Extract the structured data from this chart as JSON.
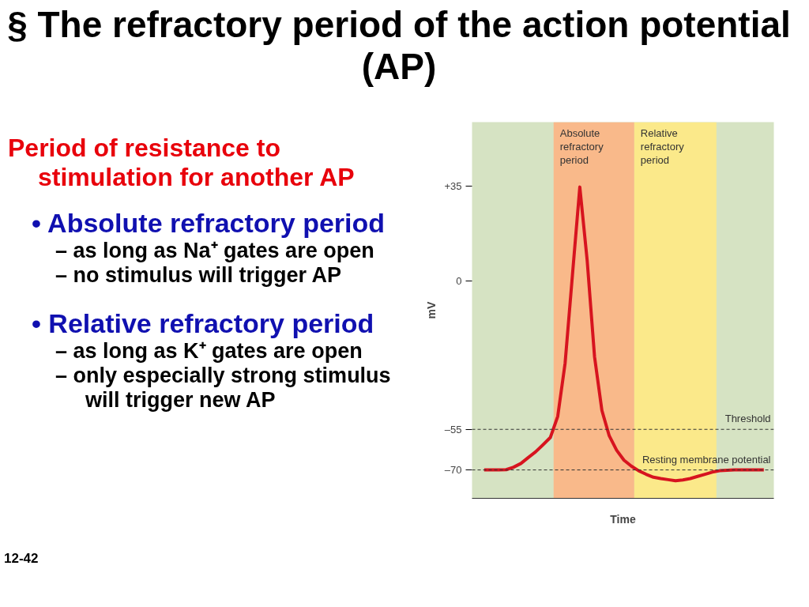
{
  "chart_data": {
    "type": "line",
    "title": "§ The refractory period of the action potential (AP)",
    "xlabel": "Time",
    "ylabel": "mV",
    "annotations": [
      "Period of resistance to stimulation for another AP",
      "• Absolute refractory period",
      "– as long as Na⁺ gates are open",
      "– no stimulus will trigger AP",
      "• Relative refractory period",
      "– as long as K⁺ gates are open",
      "– only especially strong stimulus will trigger new AP",
      "12-42",
      "Absolute refractory period",
      "Relative refractory period"
    ],
    "categories": [
      null,
      null,
      null,
      null,
      null,
      null,
      null,
      null,
      null,
      null,
      null,
      null,
      null,
      null,
      null,
      null,
      null,
      null,
      null,
      null,
      null,
      null,
      null,
      null,
      null,
      null,
      null,
      null,
      null,
      null,
      null,
      null,
      null,
      null,
      null,
      null,
      null,
      null,
      null
    ],
    "series": [
      {
        "color": "#d7141f",
        "values": [
          -70,
          -70,
          -70,
          -69.9,
          -69.0,
          -67.6,
          -65.4,
          -63.3,
          -60.7,
          -58.0,
          -50.2,
          -30.6,
          2.1,
          34.6,
          7.5,
          -28.1,
          -48.0,
          -57.4,
          -62.7,
          -66.4,
          -68.6,
          -70.3,
          -71.6,
          -72.7,
          -73.2,
          -73.6,
          -74.0,
          -73.7,
          -73.2,
          -72.4,
          -71.6,
          -70.8,
          -70.3,
          -70.1,
          -70,
          -70,
          -70,
          -70,
          -70
        ]
      }
    ],
    "ylim": [
      -80.5,
      58.6
    ],
    "yticks": [
      {
        "value": 35,
        "label": "+35"
      },
      0,
      {
        "value": -55,
        "label": "–55"
      },
      {
        "value": -70,
        "label": "–70"
      }
    ],
    "tick_labels": "y",
    "ref_lines": [
      {
        "axis": "y",
        "value": -55,
        "label": "Threshold",
        "color": "#333333",
        "line_style": "dashed"
      },
      {
        "axis": "y",
        "value": -70,
        "label": "Resting membrane potential",
        "color": "#333333",
        "line_style": "dashed"
      }
    ],
    "grid": false,
    "marker": "none",
    "line_style": "solid"
  }
}
